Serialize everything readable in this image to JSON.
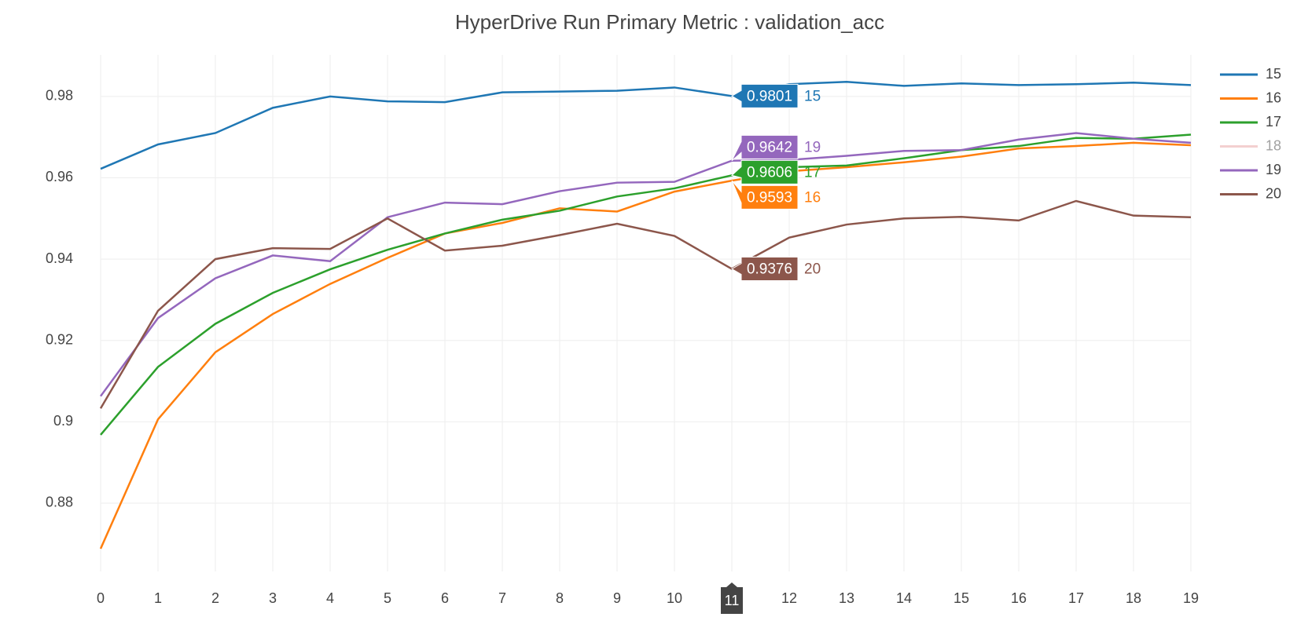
{
  "chart_data": {
    "type": "line",
    "title": "HyperDrive Run Primary Metric : validation_acc",
    "x": [
      0,
      1,
      2,
      3,
      4,
      5,
      6,
      7,
      8,
      9,
      10,
      11,
      12,
      13,
      14,
      15,
      16,
      17,
      18,
      19
    ],
    "xlim": [
      0,
      19
    ],
    "xticks": [
      0,
      1,
      2,
      3,
      4,
      5,
      6,
      7,
      8,
      9,
      10,
      11,
      12,
      13,
      14,
      15,
      16,
      17,
      18,
      19
    ],
    "ylim": [
      0.8632,
      0.9902
    ],
    "yticks": [
      0.88,
      0.9,
      0.92,
      0.94,
      0.96,
      0.98
    ],
    "grid": true,
    "legend": "right",
    "hover_index": 11,
    "series": [
      {
        "name": "15",
        "color": "#1f77b4",
        "values": [
          0.9622,
          0.9682,
          0.971,
          0.9772,
          0.98,
          0.9788,
          0.9786,
          0.981,
          0.9812,
          0.9814,
          0.9822,
          0.9801,
          0.983,
          0.9836,
          0.9826,
          0.9832,
          0.9828,
          0.983,
          0.9834,
          0.9828
        ]
      },
      {
        "name": "16",
        "color": "#ff7f0e",
        "values": [
          0.8688,
          0.9006,
          0.9171,
          0.9265,
          0.9339,
          0.9403,
          0.9463,
          0.9489,
          0.9525,
          0.9517,
          0.9566,
          0.9593,
          0.9616,
          0.9626,
          0.9638,
          0.9652,
          0.9672,
          0.9678,
          0.9686,
          0.968
        ]
      },
      {
        "name": "17",
        "color": "#2ca02c",
        "values": [
          0.8968,
          0.9135,
          0.9241,
          0.9317,
          0.9375,
          0.9423,
          0.9463,
          0.9497,
          0.9519,
          0.9554,
          0.9574,
          0.9606,
          0.9626,
          0.963,
          0.9648,
          0.9668,
          0.9678,
          0.9698,
          0.9696,
          0.9706
        ]
      },
      {
        "name": "18",
        "color": "#e9a3a3",
        "visible": "legendonly",
        "values": [
          null,
          null,
          null,
          null,
          null,
          null,
          null,
          null,
          null,
          null,
          null,
          null,
          null,
          null,
          null,
          null,
          null,
          null,
          null,
          null
        ]
      },
      {
        "name": "19",
        "color": "#9467bd",
        "values": [
          0.9063,
          0.9255,
          0.9353,
          0.9409,
          0.9395,
          0.9503,
          0.9539,
          0.9535,
          0.9567,
          0.9588,
          0.959,
          0.9642,
          0.9644,
          0.9654,
          0.9666,
          0.9668,
          0.9694,
          0.971,
          0.9696,
          0.9686
        ]
      },
      {
        "name": "20",
        "color": "#8c564b",
        "values": [
          0.9033,
          0.9273,
          0.94,
          0.9427,
          0.9425,
          0.95,
          0.9421,
          0.9433,
          0.9459,
          0.9487,
          0.9457,
          0.9376,
          0.9453,
          0.9485,
          0.95,
          0.9504,
          0.9495,
          0.9543,
          0.9507,
          0.9503
        ]
      }
    ]
  }
}
